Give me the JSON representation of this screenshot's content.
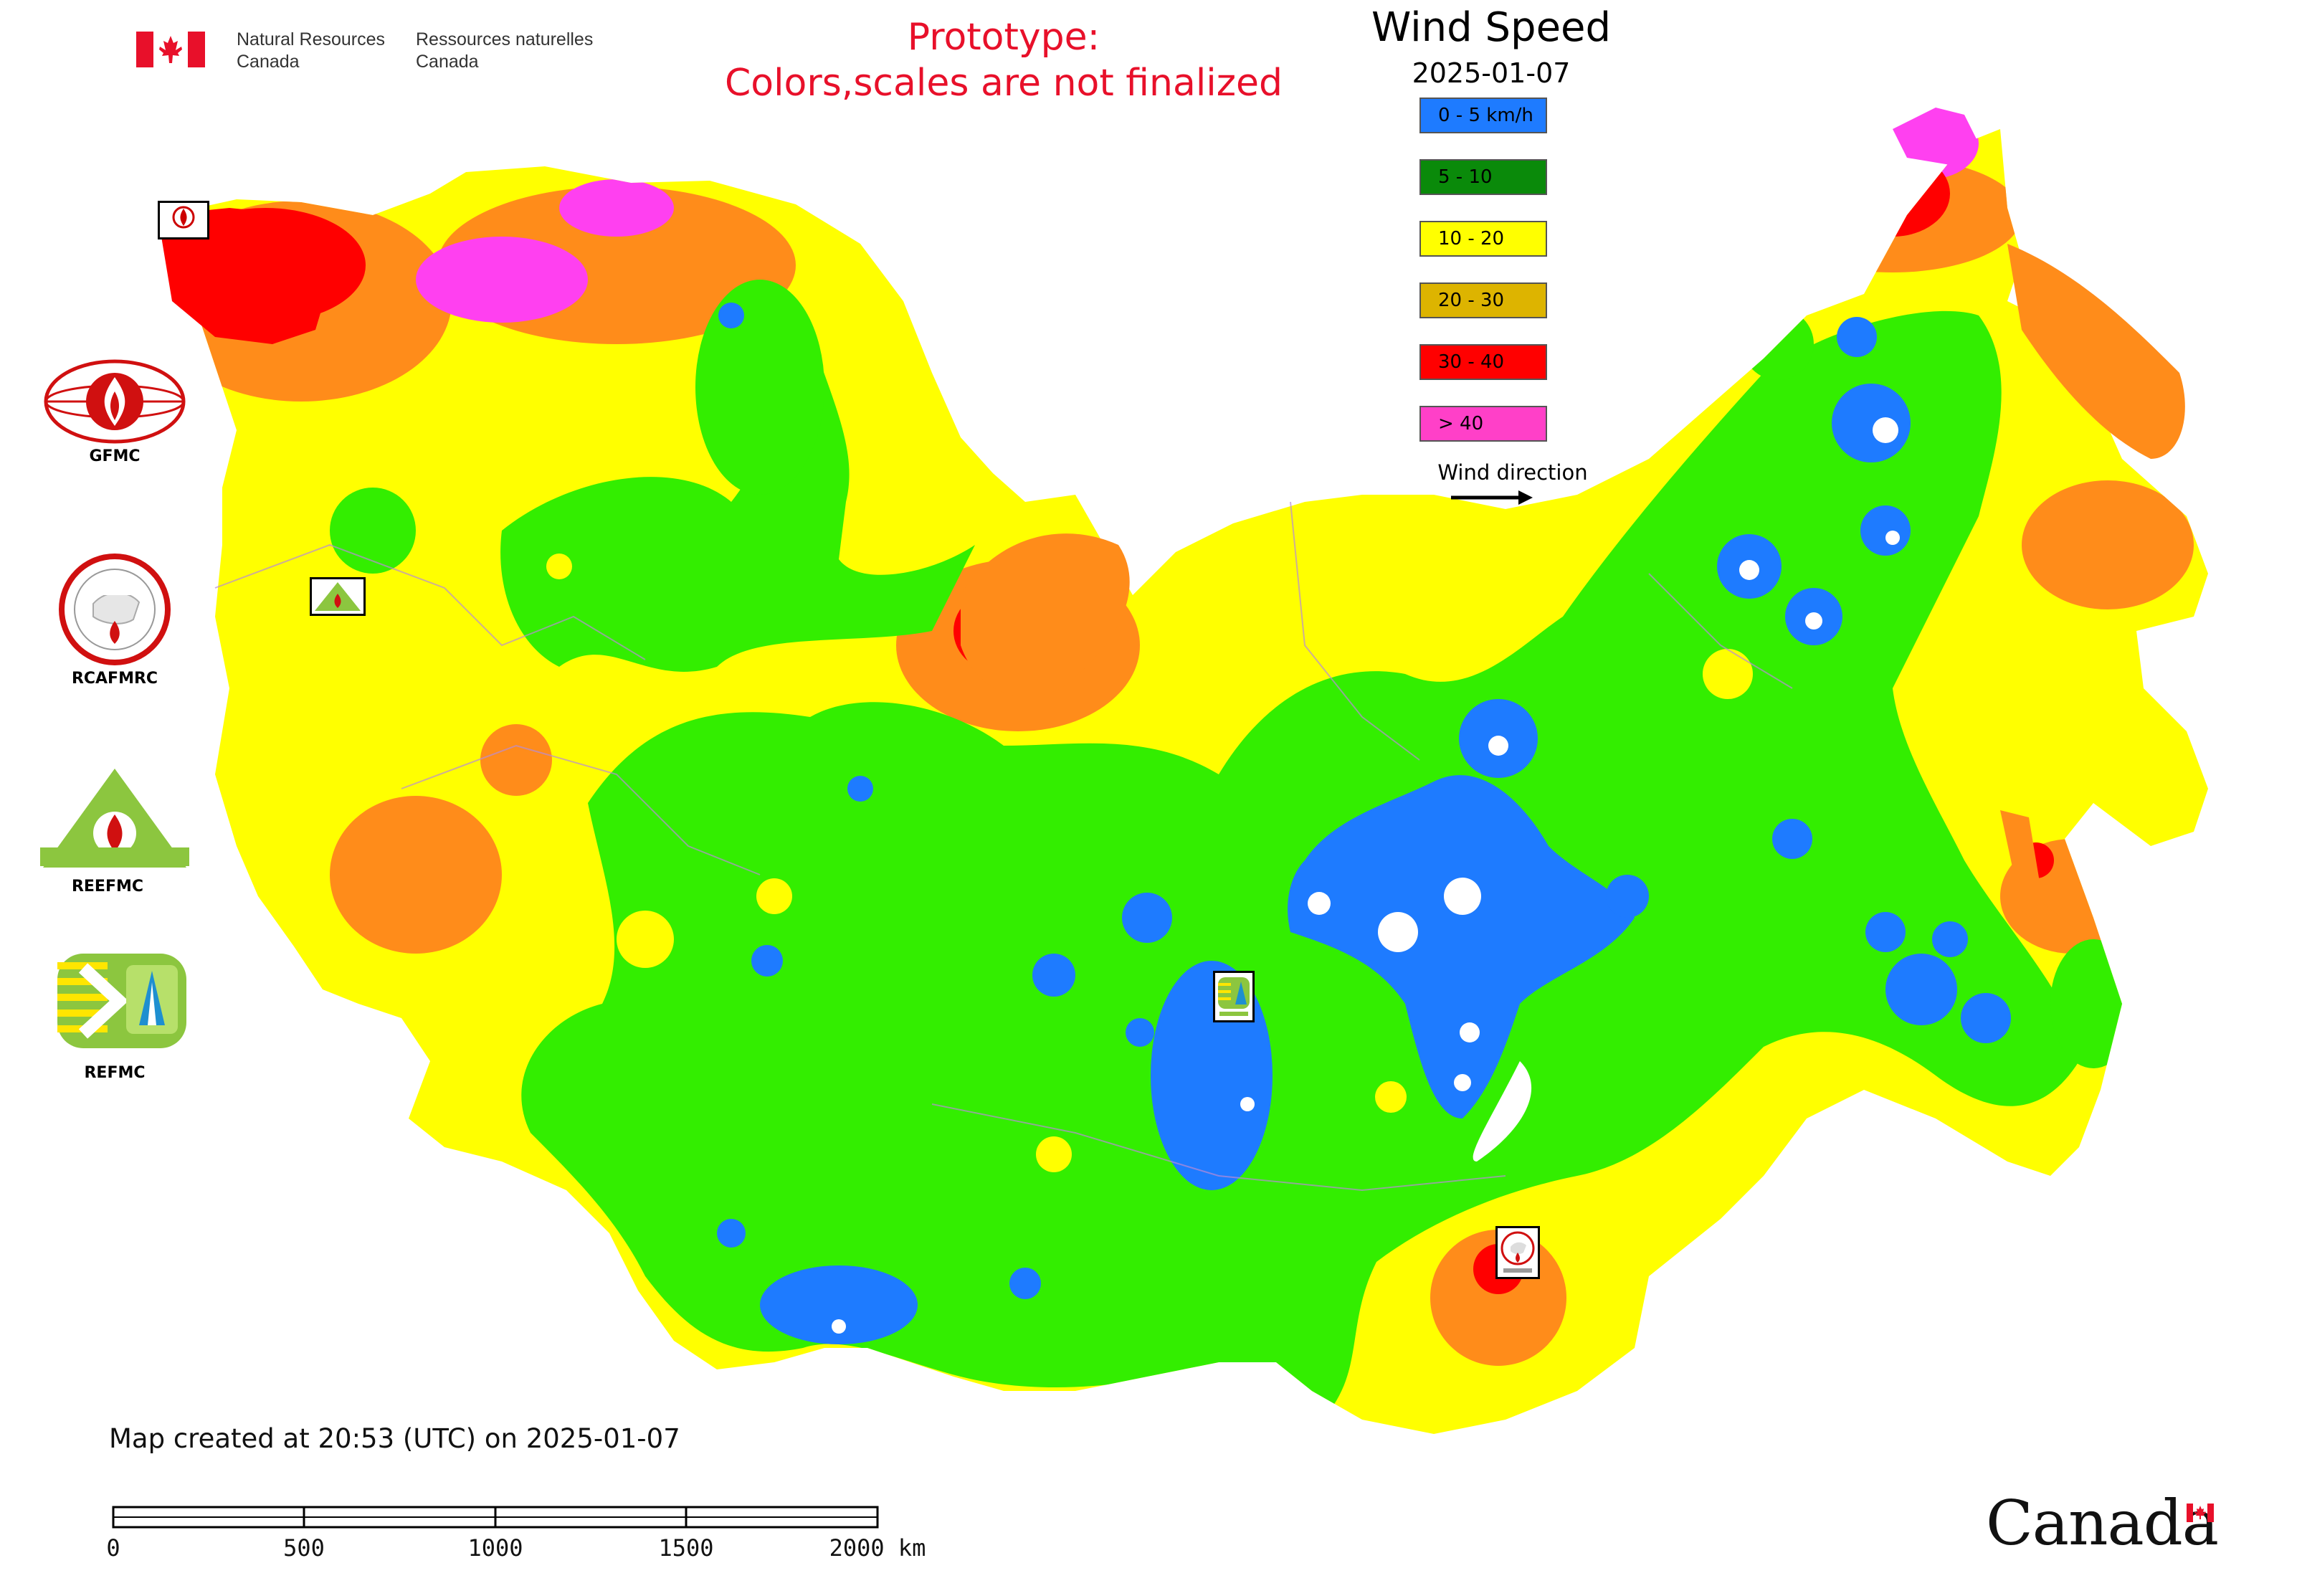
{
  "header": {
    "dept_en": "Natural Resources\nCanada",
    "dept_fr": "Ressources naturelles\nCanada",
    "prototype_line1": "Prototype:",
    "prototype_line2": "Colors,scales are not finalized"
  },
  "legend": {
    "title": "Wind Speed",
    "date": "2025-01-07",
    "items": [
      {
        "label": "0 - 5 km/h",
        "color": "#1e7bff"
      },
      {
        "label": "5 - 10",
        "color": "#0a8a0a"
      },
      {
        "label": "10 - 20",
        "color": "#ffff00"
      },
      {
        "label": "20 - 30",
        "color": "#ddb400"
      },
      {
        "label": "30 - 40",
        "color": "#ff0000"
      },
      {
        "label": "> 40",
        "color": "#ff40c8"
      }
    ],
    "wind_direction_label": "Wind direction"
  },
  "map_colors": {
    "calm": "#1e7bff",
    "light": "#33ee00",
    "moderate": "#ffff00",
    "fresh": "#ff8c1a",
    "strong": "#ff0000",
    "gale": "#ff40f0"
  },
  "logos": [
    {
      "name": "GFMC"
    },
    {
      "name": "RCAFMRC"
    },
    {
      "name": "REEFMC"
    },
    {
      "name": "REFMC"
    }
  ],
  "footer": {
    "created": "Map created at 20:53 (UTC) on 2025-01-07",
    "scale_ticks": [
      "0",
      "500",
      "1000",
      "1500",
      "2000 km"
    ],
    "wordmark": "Canada"
  }
}
